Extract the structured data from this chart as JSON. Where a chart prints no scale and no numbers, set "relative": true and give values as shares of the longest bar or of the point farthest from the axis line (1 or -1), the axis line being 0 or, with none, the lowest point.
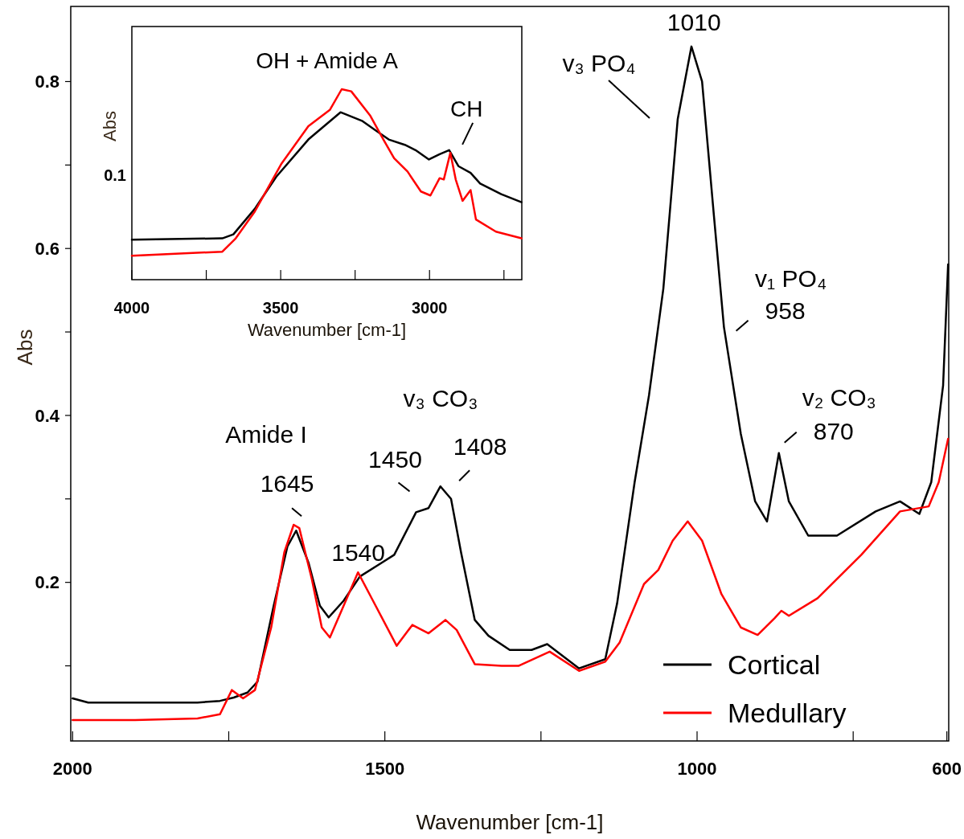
{
  "chart_data": [
    {
      "type": "line",
      "xlabel": "Wavenumber [cm-1]",
      "ylabel": "Abs",
      "xlim": [
        2003,
        597
      ],
      "xticks": [
        2000,
        {
          "value": 1750,
          "label": null
        },
        1500,
        {
          "value": 1250,
          "label": null
        },
        1000,
        {
          "value": 750,
          "label": null
        },
        600
      ],
      "ylim": [
        0.01,
        0.89
      ],
      "yticks": [
        {
          "value": 0.1,
          "label": null
        },
        0.2,
        {
          "value": 0.3,
          "label": null
        },
        0.4,
        {
          "value": 0.5,
          "label": null
        },
        0.6,
        {
          "value": 0.7,
          "label": null
        },
        0.8
      ],
      "legend": "bottom right",
      "series": [
        {
          "name": "Cortical",
          "color": "#000000",
          "x": [
            2000,
            1975,
            1900,
            1800,
            1764,
            1742,
            1720,
            1704,
            1678,
            1656,
            1642,
            1622,
            1604,
            1590,
            1566,
            1540,
            1506,
            1485,
            1450,
            1430,
            1411,
            1394,
            1378,
            1356,
            1334,
            1300,
            1265,
            1240,
            1189,
            1147,
            1128,
            1100,
            1077,
            1054,
            1031,
            1009,
            992,
            973,
            957,
            930,
            907,
            888,
            869,
            853,
            822,
            776,
            714,
            675,
            644,
            625,
            606,
            598
          ],
          "values": [
            0.061,
            0.056,
            0.056,
            0.056,
            0.058,
            0.062,
            0.068,
            0.081,
            0.172,
            0.243,
            0.262,
            0.223,
            0.172,
            0.158,
            0.178,
            0.207,
            0.223,
            0.233,
            0.284,
            0.289,
            0.315,
            0.3,
            0.236,
            0.155,
            0.136,
            0.119,
            0.119,
            0.126,
            0.097,
            0.108,
            0.175,
            0.32,
            0.424,
            0.552,
            0.755,
            0.842,
            0.8,
            0.639,
            0.506,
            0.378,
            0.297,
            0.273,
            0.355,
            0.297,
            0.256,
            0.256,
            0.285,
            0.297,
            0.282,
            0.32,
            0.436,
            0.581
          ]
        },
        {
          "name": "Medullary",
          "color": "#ff0000",
          "x": [
            2000,
            1900,
            1800,
            1764,
            1745,
            1727,
            1708,
            1682,
            1661,
            1646,
            1637,
            1617,
            1601,
            1588,
            1566,
            1543,
            1519,
            1481,
            1456,
            1430,
            1403,
            1385,
            1356,
            1313,
            1286,
            1236,
            1189,
            1147,
            1124,
            1085,
            1062,
            1039,
            1015,
            992,
            961,
            930,
            903,
            876,
            865,
            853,
            807,
            737,
            675,
            629,
            613,
            598
          ],
          "values": [
            0.035,
            0.035,
            0.037,
            0.042,
            0.071,
            0.061,
            0.071,
            0.146,
            0.236,
            0.269,
            0.265,
            0.204,
            0.146,
            0.134,
            0.172,
            0.212,
            0.178,
            0.124,
            0.149,
            0.139,
            0.155,
            0.143,
            0.102,
            0.1,
            0.1,
            0.117,
            0.094,
            0.105,
            0.128,
            0.198,
            0.215,
            0.25,
            0.273,
            0.25,
            0.186,
            0.146,
            0.137,
            0.157,
            0.166,
            0.16,
            0.181,
            0.233,
            0.285,
            0.291,
            0.32,
            0.372
          ]
        }
      ],
      "annotations": [
        {
          "text": "1010",
          "x": 1010,
          "y": 0.842
        },
        "v₃ PO₄",
        {
          "text": "v₁ PO₄",
          "x": 958,
          "y": 0.506
        },
        {
          "text": "958",
          "x": 958,
          "y": 0.506
        },
        {
          "text": "v₂ CO₃",
          "x": 869,
          "y": 0.355
        },
        {
          "text": "870",
          "x": 869,
          "y": 0.355
        },
        "Amide I",
        {
          "text": "1645",
          "x": 1645,
          "y": 0.262
        },
        {
          "text": "1540",
          "x": 1540,
          "y": 0.207
        },
        {
          "text": "1450",
          "x": 1450,
          "y": 0.284
        },
        "v₃ CO₃",
        {
          "text": "1408",
          "x": 1408,
          "y": 0.315
        }
      ]
    },
    {
      "type": "line",
      "title": "OH + Amide A",
      "xlabel": "Wavenumber [cm-1]",
      "ylabel": "Abs",
      "relative": true,
      "xlim": [
        4000,
        2690
      ],
      "xticks": [
        4000,
        {
          "value": 3750,
          "label": null
        },
        3500,
        {
          "value": 3250,
          "label": null
        },
        3000,
        {
          "value": 2750,
          "label": null
        }
      ],
      "series": [
        {
          "color": "#000000",
          "x": [
            4000,
            3696,
            3659,
            3587,
            3515,
            3407,
            3299,
            3227,
            3182,
            3137,
            3083,
            3047,
            3002,
            2966,
            2934,
            2903,
            2862,
            2830,
            2759,
            2691
          ],
          "values": [
            0.21,
            0.217,
            0.238,
            0.372,
            0.54,
            0.736,
            0.879,
            0.834,
            0.785,
            0.736,
            0.708,
            0.68,
            0.631,
            0.659,
            0.68,
            0.596,
            0.561,
            0.505,
            0.449,
            0.407
          ]
        },
        {
          "color": "#ff0000",
          "x": [
            4000,
            3696,
            3651,
            3587,
            3497,
            3407,
            3335,
            3295,
            3263,
            3200,
            3155,
            3119,
            3074,
            3029,
            2997,
            2966,
            2952,
            2930,
            2912,
            2889,
            2862,
            2844,
            2777,
            2691
          ],
          "values": [
            0.126,
            0.147,
            0.217,
            0.358,
            0.61,
            0.806,
            0.891,
            1.0,
            0.989,
            0.863,
            0.736,
            0.638,
            0.568,
            0.463,
            0.442,
            0.533,
            0.526,
            0.666,
            0.526,
            0.414,
            0.47,
            0.316,
            0.252,
            0.217
          ]
        }
      ],
      "annotations": [
        {
          "text": "CH",
          "x": 2930,
          "y": 0.68
        },
        "0.1"
      ]
    }
  ]
}
